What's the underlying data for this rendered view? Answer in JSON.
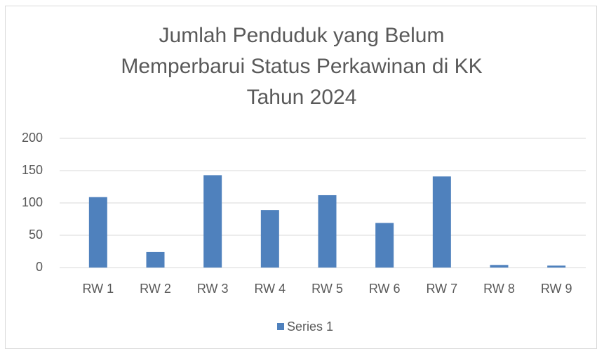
{
  "chart_data": {
    "type": "bar",
    "title": [
      "Jumlah Penduduk yang Belum",
      "Memperbarui Status Perkawinan di KK",
      "Tahun 2024"
    ],
    "categories": [
      "RW 1",
      "RW 2",
      "RW 3",
      "RW 4",
      "RW 5",
      "RW 6",
      "RW 7",
      "RW 8",
      "RW 9"
    ],
    "series": [
      {
        "name": "Series 1",
        "color": "#4f81bd",
        "values": [
          109,
          24,
          143,
          89,
          112,
          69,
          141,
          4,
          3
        ]
      }
    ],
    "ylim": [
      0,
      200
    ],
    "yticks": [
      0,
      50,
      100,
      150,
      200
    ],
    "grid": true,
    "legend": "bottom"
  }
}
